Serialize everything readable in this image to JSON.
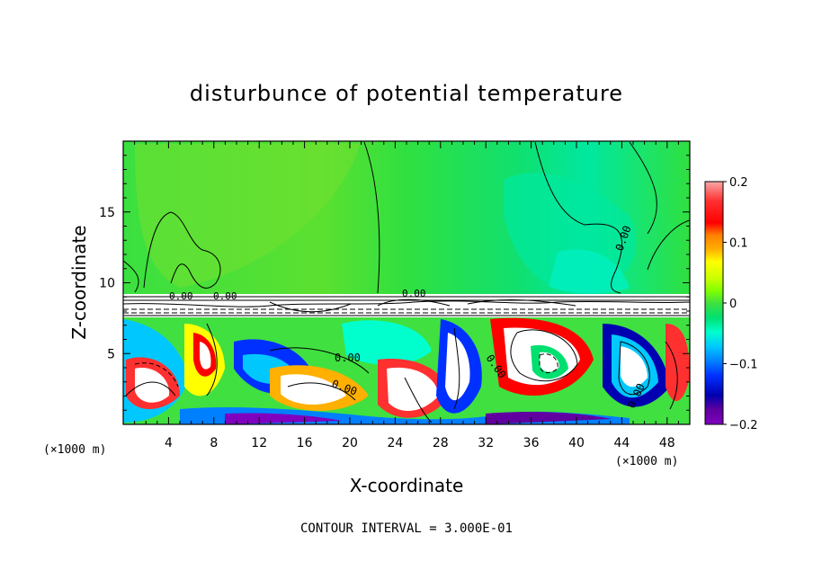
{
  "chart_data": {
    "type": "heatmap",
    "title": "disturbunce of potential temperature",
    "xlabel": "X-coordinate",
    "ylabel": "Z-coordinate",
    "x_unit": "(×1000 m)",
    "z_unit": "(×1000 m)",
    "xlim": [
      0,
      50
    ],
    "ylim": [
      0,
      20
    ],
    "x_ticks": [
      "4",
      "8",
      "12",
      "16",
      "20",
      "24",
      "28",
      "32",
      "36",
      "40",
      "44",
      "48"
    ],
    "y_ticks": [
      "5",
      "10",
      "15"
    ],
    "colorbar": {
      "range": [
        -0.2,
        0.2
      ],
      "tick_labels": [
        "0.2",
        "0.1",
        "0",
        "−0.1",
        "−0.2"
      ],
      "colors": [
        "#f7a8a8",
        "#ff3030",
        "#ff0000",
        "#ff8000",
        "#ffb000",
        "#ffff00",
        "#c8ff00",
        "#80ff00",
        "#40e040",
        "#00e070",
        "#00ffcc",
        "#00c8ff",
        "#0080ff",
        "#0030ff",
        "#0000b0",
        "#6000a0",
        "#8000c0"
      ]
    },
    "contour_labels": [
      "0.00",
      "0.00",
      "0.00",
      "0.00",
      "0.00",
      "0.00",
      "0.00",
      "0.00"
    ],
    "footer": "CONTOUR INTERVAL = 3.000E-01",
    "grid": false
  }
}
